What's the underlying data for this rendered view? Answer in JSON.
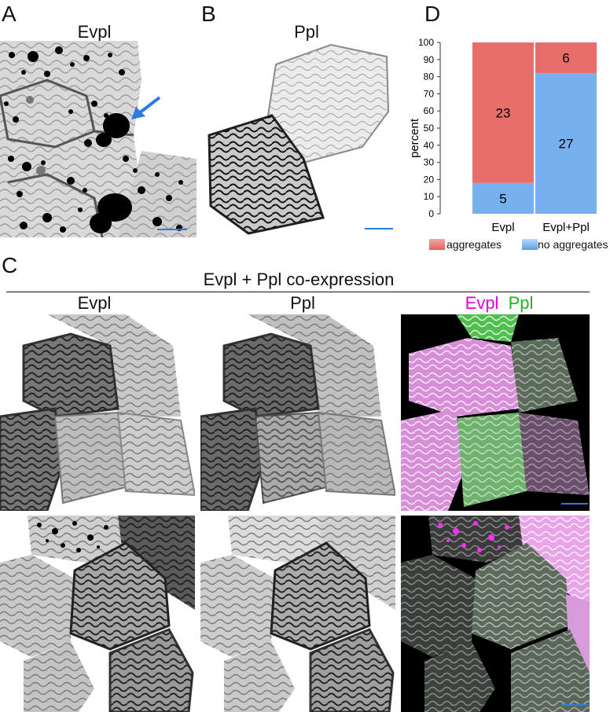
{
  "panels": {
    "A": {
      "letter": "A",
      "title": "Evpl"
    },
    "B": {
      "letter": "B",
      "title": "Ppl"
    },
    "C": {
      "letter": "C",
      "heading": "Evpl + Ppl  co-expression",
      "col_titles": [
        "Evpl",
        "Ppl"
      ],
      "merge_title": {
        "part1": "Evpl",
        "part2": "Ppl"
      }
    },
    "D": {
      "letter": "D"
    }
  },
  "colors": {
    "scale_bar": "#2a7be4",
    "arrow": "#2a7be4",
    "magenta": "#e000e0",
    "green": "#20b020",
    "aggregates": "#e5625c",
    "no_aggregates": "#6aa9ee"
  },
  "legend": {
    "aggregates": "aggregates",
    "no_aggregates": "no aggregates"
  },
  "chart_data": {
    "type": "bar",
    "stacked": true,
    "categories": [
      "Evpl",
      "Evpl+Ppl"
    ],
    "series": [
      {
        "name": "no aggregates",
        "values": [
          18,
          82
        ],
        "counts": [
          "5",
          "27"
        ]
      },
      {
        "name": "aggregates",
        "values": [
          82,
          18
        ],
        "counts": [
          "23",
          "6"
        ]
      }
    ],
    "ylabel": "percent",
    "ylim": [
      0,
      100
    ],
    "yticks": [
      0,
      10,
      20,
      30,
      40,
      50,
      60,
      70,
      80,
      90,
      100
    ]
  }
}
